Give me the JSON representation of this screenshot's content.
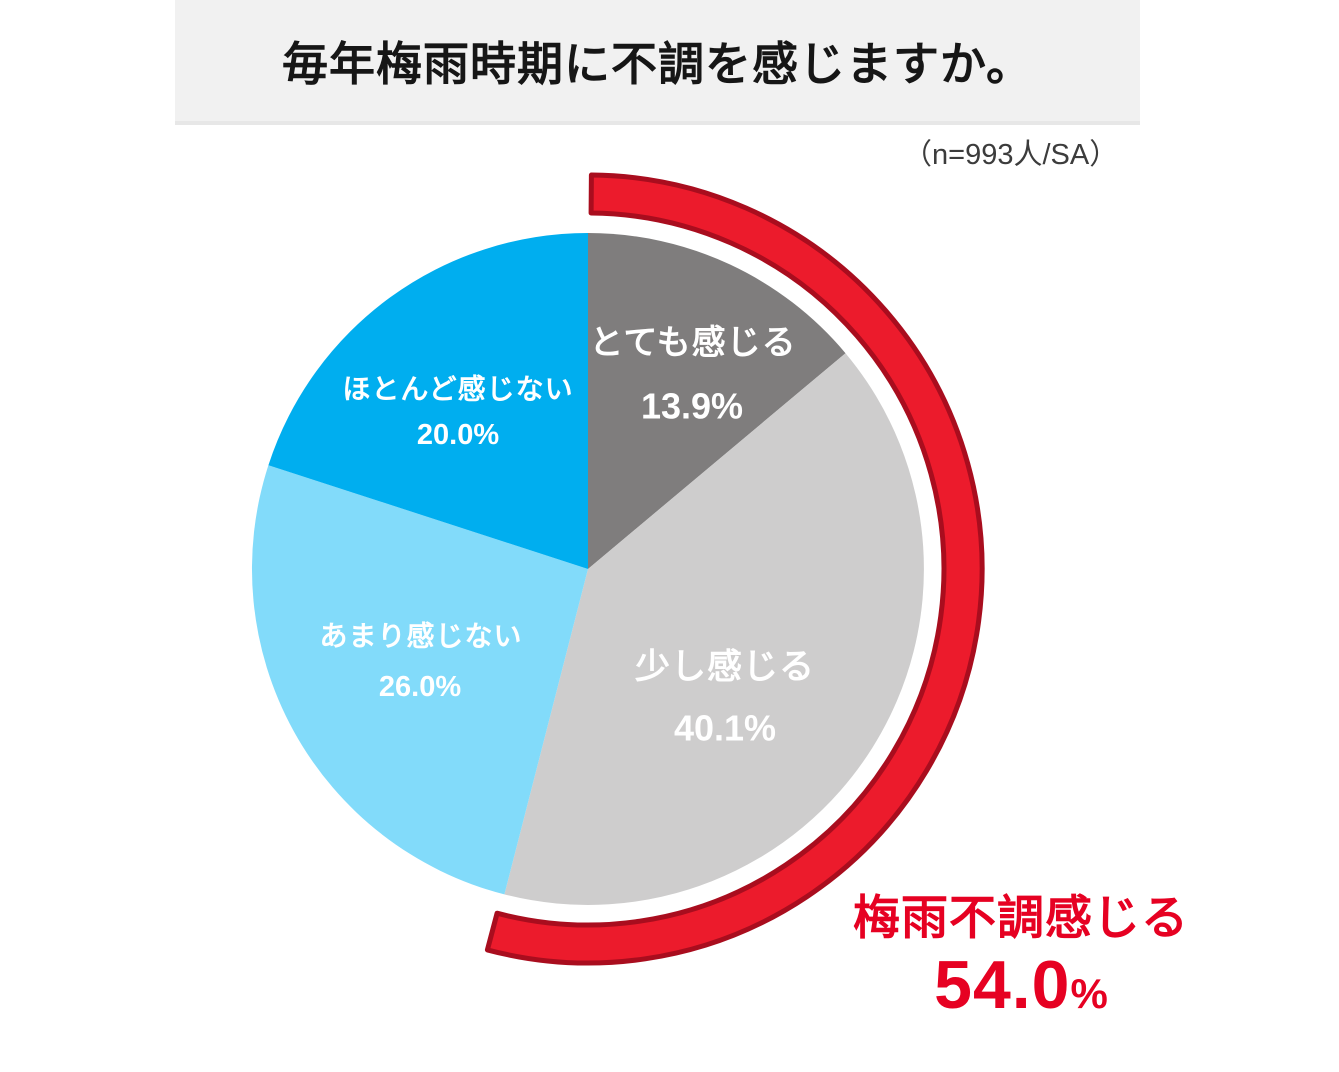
{
  "header": {
    "title": "毎年梅雨時期に不調を感じますか。"
  },
  "sample_note": "（n=993人/SA）",
  "chart_data": {
    "type": "pie",
    "title": "毎年梅雨時期に不調を感じますか。",
    "sample_size": "n=993人/SA",
    "unit": "%",
    "start_angle_deg": 0,
    "direction": "clockwise",
    "slices": [
      {
        "label": "とても感じる",
        "value": 13.9,
        "color": "#7f7d7d",
        "text_color": "#ffffff"
      },
      {
        "label": "少し感じる",
        "value": 40.1,
        "color": "#cecdcd",
        "text_color": "#ffffff"
      },
      {
        "label": "あまり感じない",
        "value": 26.0,
        "color": "#82dbfa",
        "text_color": "#ffffff"
      },
      {
        "label": "ほとんど感じない",
        "value": 20.0,
        "color": "#00aeef",
        "text_color": "#ffffff"
      }
    ],
    "highlight": {
      "label": "梅雨不調感じる",
      "value": "54.0",
      "unit": "%",
      "arc_span_pct": 54.0,
      "arc_covers": [
        "とても感じる",
        "少し感じる"
      ],
      "arc_fill": "#ec1b2c",
      "arc_stroke": "#a90d1e",
      "text_color": "#e60122"
    }
  }
}
